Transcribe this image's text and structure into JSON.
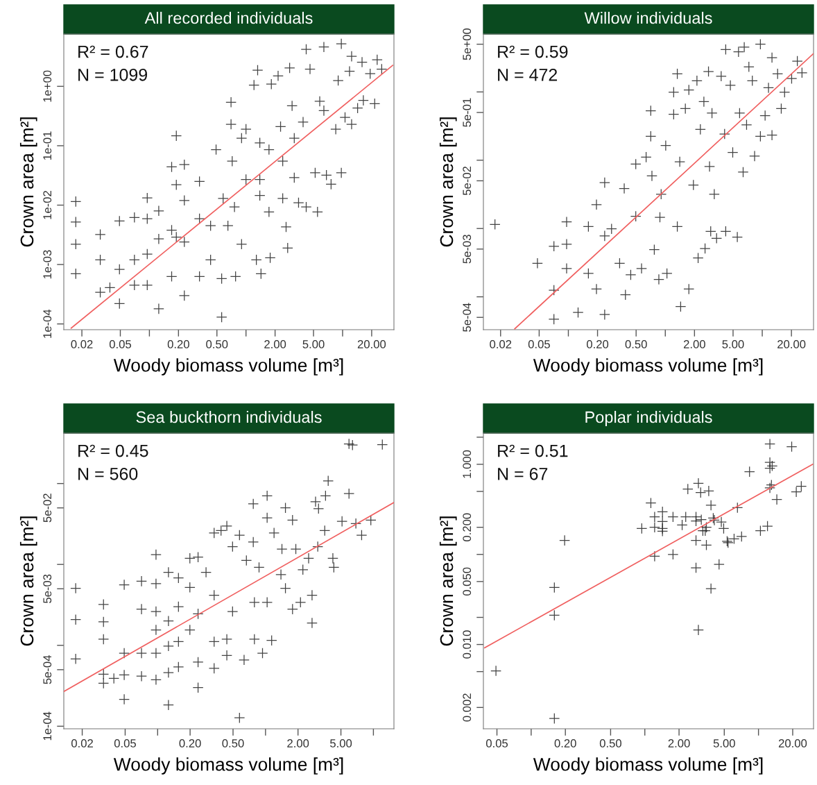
{
  "chart_data": [
    {
      "type": "scatter",
      "title": "All recorded individuals",
      "xlabel": "Woody biomass volume [m³]",
      "ylabel": "Crown area [m²]",
      "log": "xy",
      "annotations": [
        "R² = 0.67",
        "N = 1099"
      ],
      "xlim": [
        0.013,
        34
      ],
      "ylim": [
        8e-05,
        7.6
      ],
      "xticks": [
        {
          "value": 0.02,
          "label": "0.02"
        },
        {
          "value": 0.05,
          "label": "0.05"
        },
        {
          "value": 0.1,
          "label": null
        },
        {
          "value": 0.2,
          "label": "0.20"
        },
        {
          "value": 0.5,
          "label": "0.50"
        },
        {
          "value": 1,
          "label": null
        },
        {
          "value": 2,
          "label": "2.00"
        },
        {
          "value": 5,
          "label": "5.00"
        },
        {
          "value": 10,
          "label": null
        },
        {
          "value": 20,
          "label": "20.00"
        }
      ],
      "yticks": [
        {
          "value": 0.0001,
          "label": "1e-04"
        },
        {
          "value": 0.001,
          "label": "1e-03"
        },
        {
          "value": 0.01,
          "label": "1e-02"
        },
        {
          "value": 0.1,
          "label": "1e-01"
        },
        {
          "value": 1,
          "label": "1e+00"
        }
      ],
      "series": [
        {
          "marker": "cross",
          "color": "#222222",
          "x": [
            0.0173,
            0.0173,
            0.0173,
            0.0173,
            0.031,
            0.031,
            0.031,
            0.039,
            0.049,
            0.049,
            0.049,
            0.07,
            0.07,
            0.07,
            0.095,
            0.095,
            0.095,
            0.095,
            0.125,
            0.125,
            0.125,
            0.17,
            0.17,
            0.17,
            0.19,
            0.19,
            0.19,
            0.23,
            0.23,
            0.23,
            0.23,
            0.33,
            0.33,
            0.33,
            0.43,
            0.43,
            0.49,
            0.56,
            0.56,
            0.58,
            0.7,
            0.7,
            0.72,
            0.76,
            0.78,
            0.9,
            1,
            1,
            1.21,
            1.32,
            1.28,
            1.43,
            1.39,
            1.73,
            1.78,
            1.83,
            2.15,
            2.4,
            2.4,
            2.6,
            2.7,
            2.83,
            3.0,
            3.16,
            3.16,
            3.5,
            4.2,
            4.2,
            4.6,
            5.2,
            5.5,
            5.8,
            6.4,
            6.8,
            7.6,
            8.5,
            9.0,
            9.7,
            9.7,
            10.6,
            11.8,
            12.4,
            12.4,
            14.3,
            15.9,
            16.4,
            19.3,
            21.5,
            22.8,
            25.4,
            0.9,
            1.39,
            1.73,
            2.28,
            3.9,
            6.4,
            1.39,
            0.65
          ],
          "values": [
            0.0115,
            0.0052,
            0.0022,
            0.0007,
            0.0032,
            0.0012,
            0.00034,
            0.00041,
            0.0054,
            0.00083,
            0.00022,
            0.0062,
            0.0012,
            0.00045,
            0.0132,
            0.0059,
            0.0015,
            0.00045,
            0.008,
            0.0027,
            0.00018,
            0.044,
            0.0038,
            0.00063,
            0.147,
            0.022,
            0.0029,
            0.048,
            0.012,
            0.0024,
            0.0003,
            0.025,
            0.0059,
            0.00063,
            0.0045,
            0.0012,
            0.086,
            0.00058,
            0.00013,
            0.013,
            0.54,
            0.23,
            0.055,
            0.0093,
            0.00063,
            0.0022,
            0.19,
            0.027,
            1.05,
            1.87,
            0.0012,
            0.0007,
            0.112,
            0.0077,
            0.0013,
            1.09,
            1.5,
            0.055,
            0.013,
            0.0043,
            0.0019,
            2.04,
            0.47,
            0.134,
            0.029,
            0.011,
            4.2,
            0.0093,
            1.95,
            0.035,
            0.0077,
            0.56,
            4.6,
            0.032,
            0.0225,
            0.19,
            1.25,
            5.2,
            0.035,
            0.3,
            1.79,
            3.2,
            0.23,
            0.43,
            2.55,
            0.58,
            1.63,
            0.51,
            2.8,
            1.95,
            0.134,
            0.027,
            0.086,
            0.21,
            0.25,
            0.39,
            0.0145,
            0.0045
          ]
        },
        {
          "type": "line",
          "color": "#f06060",
          "line_style": "solid",
          "x": [
            0.0155,
            33
          ],
          "values": [
            8.5e-05,
            2.25
          ]
        }
      ]
    },
    {
      "type": "scatter",
      "title": "Willow individuals",
      "xlabel": "Woody biomass volume [m³]",
      "ylabel": "Crown area [m²]",
      "log": "xy",
      "annotations": [
        "R² = 0.59",
        "N = 472"
      ],
      "xlim": [
        0.0133,
        33.8
      ],
      "ylim": [
        0.00033,
        7.05
      ],
      "xticks": [
        {
          "value": 0.02,
          "label": "0.02"
        },
        {
          "value": 0.05,
          "label": "0.05"
        },
        {
          "value": 0.1,
          "label": null
        },
        {
          "value": 0.2,
          "label": "0.20"
        },
        {
          "value": 0.5,
          "label": "0.50"
        },
        {
          "value": 1,
          "label": null
        },
        {
          "value": 2,
          "label": "2.00"
        },
        {
          "value": 5,
          "label": "5.00"
        },
        {
          "value": 10,
          "label": null
        },
        {
          "value": 20,
          "label": "20.00"
        }
      ],
      "yticks": [
        {
          "value": 0.0005,
          "label": "5e-04"
        },
        {
          "value": 0.001,
          "label": null
        },
        {
          "value": 0.005,
          "label": "5e-03"
        },
        {
          "value": 0.01,
          "label": null
        },
        {
          "value": 0.05,
          "label": "5e-02"
        },
        {
          "value": 0.1,
          "label": null
        },
        {
          "value": 0.5,
          "label": "5e-01"
        },
        {
          "value": 1,
          "label": null
        },
        {
          "value": 5,
          "label": "5e+00"
        }
      ],
      "series": [
        {
          "marker": "cross",
          "color": "#222222",
          "x": [
            0.0175,
            0.048,
            0.071,
            0.071,
            0.071,
            0.096,
            0.096,
            0.096,
            0.126,
            0.161,
            0.161,
            0.195,
            0.195,
            0.237,
            0.237,
            0.237,
            0.279,
            0.338,
            0.377,
            0.388,
            0.44,
            0.496,
            0.496,
            0.569,
            0.634,
            0.708,
            0.708,
            0.728,
            0.77,
            0.858,
            0.88,
            0.906,
            1.01,
            1.04,
            1.22,
            1.22,
            1.33,
            1.33,
            1.44,
            1.41,
            1.61,
            1.75,
            1.75,
            1.95,
            2.12,
            2.18,
            2.3,
            2.5,
            2.57,
            2.79,
            2.86,
            2.94,
            3.03,
            3.2,
            3.38,
            3.77,
            4.09,
            4.2,
            4.2,
            4.69,
            4.96,
            5.53,
            5.69,
            5.84,
            6.35,
            6.52,
            6.89,
            7.28,
            7.9,
            8.34,
            9.57,
            9.57,
            10.7,
            11.6,
            12.6,
            12.6,
            14.4,
            15.7,
            17.0,
            20.1,
            23,
            25.7
          ],
          "values": [
            0.0115,
            0.0031,
            0.0055,
            0.00125,
            0.00047,
            0.0125,
            0.0059,
            0.0026,
            0.00059,
            0.0107,
            0.0022,
            0.0224,
            0.0013,
            0.047,
            0.0078,
            0.00055,
            0.0099,
            0.0031,
            0.0386,
            0.00107,
            0.0021,
            0.0877,
            0.0151,
            0.0026,
            0.111,
            0.53,
            0.224,
            0.059,
            0.0049,
            0.0018,
            0.0146,
            0.0318,
            0.164,
            0.0022,
            0.99,
            0.47,
            1.84,
            0.0107,
            0.00072,
            0.095,
            0.57,
            1.07,
            0.0013,
            0.0434,
            1.46,
            0.0037,
            0.283,
            0.72,
            0.0051,
            1.99,
            0.081,
            0.0091,
            0.49,
            0.0318,
            0.0072,
            1.7,
            0.242,
            4.18,
            0.0091,
            1.25,
            0.13,
            0.0075,
            3.87,
            0.49,
            0.067,
            4.52,
            0.33,
            2.33,
            1.46,
            0.115,
            5.0,
            0.224,
            0.45,
            1.15,
            3.18,
            0.233,
            1.84,
            0.57,
            0.99,
            1.57,
            2.83,
            1.91
          ]
        },
        {
          "type": "line",
          "color": "#f06060",
          "line_style": "solid",
          "x": [
            0.028,
            33.5
          ],
          "values": [
            0.00034,
            3.6
          ]
        }
      ]
    },
    {
      "type": "scatter",
      "title": "Sea buckthorn individuals",
      "xlabel": "Woody biomass volume [m³]",
      "ylabel": "Crown area [m²]",
      "log": "xy",
      "annotations": [
        "R² = 0.45",
        "N = 560"
      ],
      "xlim": [
        0.0135,
        15.5
      ],
      "ylim": [
        9.3e-05,
        0.42
      ],
      "xticks": [
        {
          "value": 0.02,
          "label": "0.02"
        },
        {
          "value": 0.05,
          "label": "0.05"
        },
        {
          "value": 0.1,
          "label": null
        },
        {
          "value": 0.2,
          "label": "0.20"
        },
        {
          "value": 0.5,
          "label": "0.50"
        },
        {
          "value": 1,
          "label": null
        },
        {
          "value": 2,
          "label": "2.00"
        },
        {
          "value": 5,
          "label": "5.00"
        },
        {
          "value": 10,
          "label": null
        }
      ],
      "yticks": [
        {
          "value": 0.0001,
          "label": "1e-04"
        },
        {
          "value": 0.0005,
          "label": "5e-04"
        },
        {
          "value": 0.001,
          "label": null
        },
        {
          "value": 0.005,
          "label": "5e-03"
        },
        {
          "value": 0.01,
          "label": null
        },
        {
          "value": 0.05,
          "label": "5e-02"
        },
        {
          "value": 0.1,
          "label": null
        }
      ],
      "series": [
        {
          "marker": "cross",
          "color": "#222222",
          "x": [
            0.0174,
            0.0174,
            0.0174,
            0.0315,
            0.0315,
            0.0315,
            0.0315,
            0.0315,
            0.0393,
            0.049,
            0.049,
            0.049,
            0.049,
            0.0709,
            0.0709,
            0.0709,
            0.0709,
            0.0966,
            0.0966,
            0.0966,
            0.0966,
            0.0966,
            0.0966,
            0.126,
            0.126,
            0.126,
            0.126,
            0.126,
            0.156,
            0.156,
            0.156,
            0.156,
            0.199,
            0.199,
            0.199,
            0.237,
            0.237,
            0.237,
            0.237,
            0.281,
            0.334,
            0.334,
            0.334,
            0.334,
            0.387,
            0.438,
            0.438,
            0.438,
            0.495,
            0.495,
            0.574,
            0.574,
            0.633,
            0.665,
            0.77,
            0.77,
            0.789,
            0.789,
            0.871,
            0.938,
            1.035,
            1.035,
            1.035,
            1.14,
            1.2,
            1.39,
            1.42,
            1.53,
            1.53,
            1.78,
            1.78,
            1.91,
            2.11,
            2.22,
            2.51,
            2.7,
            2.7,
            2.91,
            3.05,
            3.1,
            3.54,
            3.6,
            3.81,
            4.21,
            4.3,
            5.12,
            5.94,
            5.94,
            6.4,
            6.88,
            7.78,
            9.47,
            12.1
          ],
          "values": [
            0.00507,
            0.00208,
            0.00068,
            0.0032,
            0.00195,
            0.00119,
            0.00044,
            0.00034,
            0.00039,
            0.0056,
            0.0008,
            0.00043,
            0.000215,
            0.0062,
            0.0028,
            0.0008,
            0.000416,
            0.0132,
            0.00578,
            0.00262,
            0.00155,
            0.0008,
            0.000376,
            0.008,
            0.002,
            0.00098,
            0.00046,
            0.000183,
            0.0068,
            0.003,
            0.00111,
            0.00054,
            0.0119,
            0.0052,
            0.00155,
            0.0123,
            0.00245,
            0.00062,
            0.0003,
            0.008,
            0.0245,
            0.00416,
            0.00111,
            0.00052,
            0.0262,
            0.0299,
            0.00119,
            0.00075,
            0.0166,
            0.00262,
            0.000127,
            0.023,
            0.00066,
            0.0112,
            0.056,
            0.0189,
            0.0034,
            0.00119,
            0.0092,
            0.0008,
            0.0705,
            0.0034,
            0.0377,
            0.00115,
            0.0245,
            0.0075,
            0.0155,
            0.05,
            0.00507,
            0.0353,
            0.0028,
            0.0155,
            0.0034,
            0.0086,
            0.0119,
            0.00416,
            0.00189,
            0.0597,
            0.0166,
            0.049,
            0.0262,
            0.0705,
            0.108,
            0.0119,
            0.0092,
            0.0341,
            0.309,
            0.075,
            0.299,
            0.032,
            0.023,
            0.0353,
            0.303
          ]
        },
        {
          "type": "line",
          "color": "#f06060",
          "line_style": "solid",
          "x": [
            0.0136,
            15.4
          ],
          "values": [
            0.00027,
            0.058
          ]
        }
      ]
    },
    {
      "type": "scatter",
      "title": "Poplar individuals",
      "xlabel": "Woody biomass volume [m³]",
      "ylabel": "Crown area [m²]",
      "log": "xy",
      "annotations": [
        "R² = 0.51",
        "N = 67"
      ],
      "xlim": [
        0.038,
        30.5
      ],
      "ylim": [
        0.00116,
        2.22
      ],
      "xticks": [
        {
          "value": 0.05,
          "label": "0.05"
        },
        {
          "value": 0.1,
          "label": null
        },
        {
          "value": 0.2,
          "label": "0.20"
        },
        {
          "value": 0.5,
          "label": "0.50"
        },
        {
          "value": 1,
          "label": null
        },
        {
          "value": 2,
          "label": "2.00"
        },
        {
          "value": 5,
          "label": "5.00"
        },
        {
          "value": 10,
          "label": null
        },
        {
          "value": 20,
          "label": "20.00"
        }
      ],
      "yticks": [
        {
          "value": 0.002,
          "label": "0.002"
        },
        {
          "value": 0.005,
          "label": null
        },
        {
          "value": 0.01,
          "label": "0.010"
        },
        {
          "value": 0.02,
          "label": null
        },
        {
          "value": 0.05,
          "label": "0.050"
        },
        {
          "value": 0.1,
          "label": null
        },
        {
          "value": 0.2,
          "label": "0.200"
        },
        {
          "value": 0.5,
          "label": null
        },
        {
          "value": 1,
          "label": "1.000"
        },
        {
          "value": 2,
          "label": null
        }
      ],
      "series": [
        {
          "marker": "cross",
          "color": "#222222",
          "x": [
            0.049,
            0.16,
            0.16,
            0.16,
            0.197,
            0.94,
            1.13,
            1.22,
            1.22,
            1.22,
            1.43,
            1.43,
            1.43,
            1.43,
            1.77,
            1.77,
            2.13,
            2.29,
            2.39,
            2.82,
            2.82,
            2.82,
            2.82,
            2.96,
            2.96,
            3.1,
            3.14,
            3.24,
            3.4,
            3.48,
            3.48,
            3.65,
            3.82,
            3.82,
            4.0,
            4.09,
            4.5,
            4.71,
            4.94,
            5.3,
            5.4,
            6.1,
            6.53,
            7.1,
            8.34,
            10.4,
            12.0,
            12.6,
            12.6,
            12.6,
            12.6,
            13.2,
            13.0,
            14.5,
            19.6,
            21.5,
            23.8
          ],
          "values": [
            0.0051,
            0.0429,
            0.0211,
            0.00151,
            0.143,
            0.194,
            0.372,
            0.261,
            0.2,
            0.0953,
            0.297,
            0.232,
            0.194,
            0.181,
            0.261,
            0.1,
            0.212,
            0.261,
            0.531,
            0.261,
            0.235,
            0.143,
            0.071,
            0.616,
            0.0145,
            0.486,
            0.243,
            0.183,
            0.183,
            0.2,
            0.127,
            0.506,
            0.351,
            0.0417,
            0.253,
            0.24,
            0.0775,
            0.229,
            0.194,
            0.14,
            0.135,
            0.149,
            0.33,
            0.158,
            0.828,
            0.183,
            0.206,
            1.68,
            1.05,
            0.904,
            0.547,
            0.96,
            0.59,
            0.407,
            1.57,
            0.494,
            0.57
          ]
        },
        {
          "type": "line",
          "color": "#f06060",
          "line_style": "solid",
          "x": [
            0.039,
            30
          ],
          "values": [
            0.0092,
            1.0
          ]
        }
      ]
    }
  ]
}
